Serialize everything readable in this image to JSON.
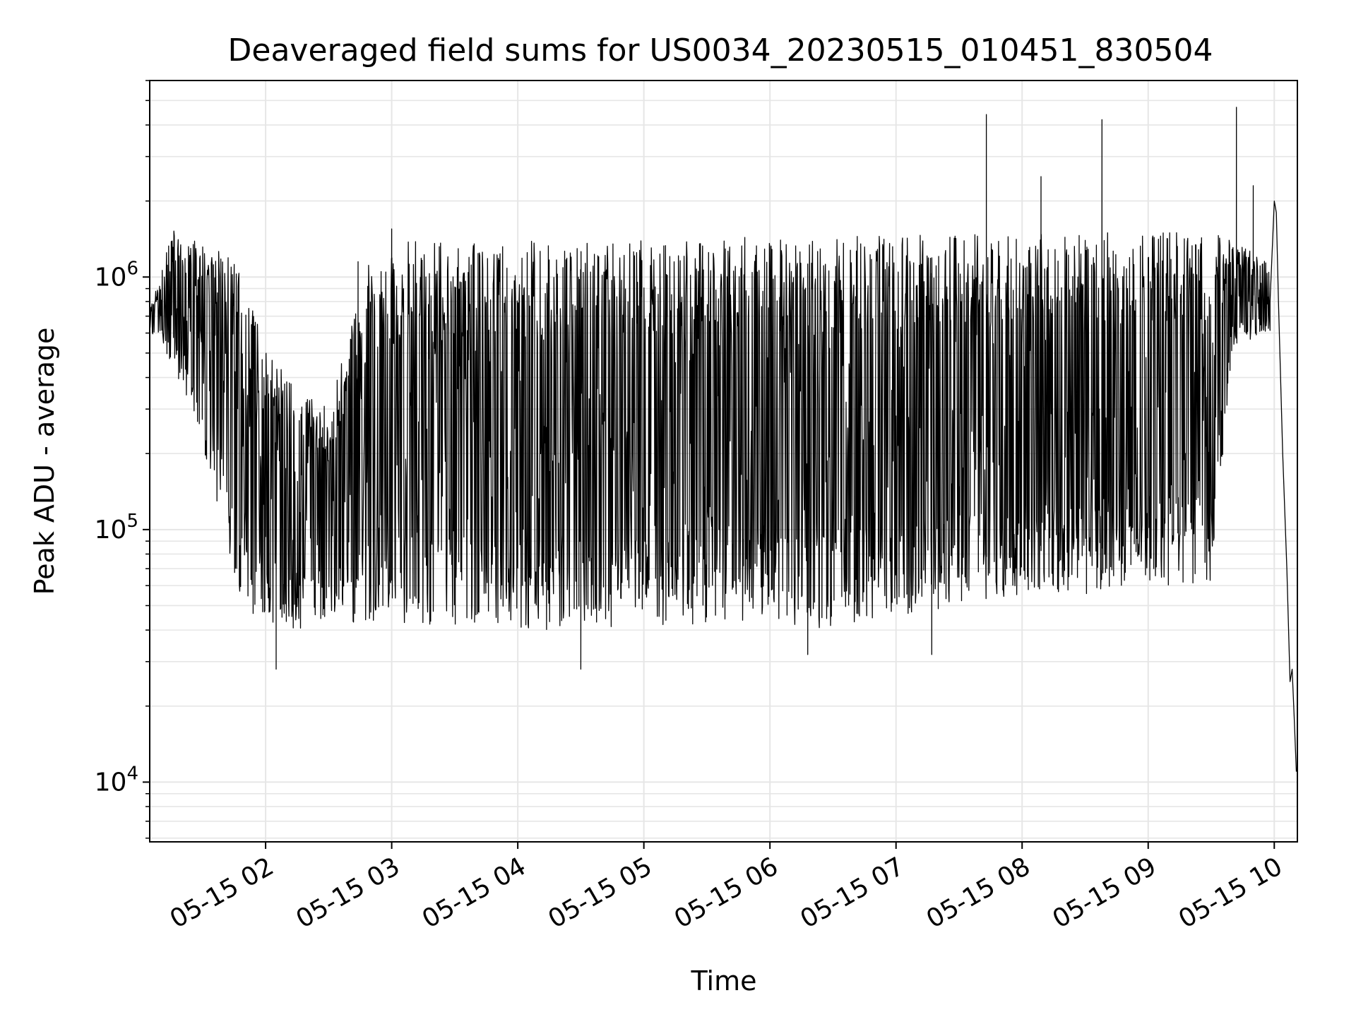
{
  "chart_data": {
    "type": "line",
    "title": "Deaveraged field sums for US0034_20230515_010451_830504",
    "xlabel": "Time",
    "ylabel": "Peak ADU - average",
    "yscale": "log",
    "ylim": [
      5800,
      6000000
    ],
    "xlim": [
      "2023-05-15 01:04:51",
      "2023-05-15 10:11:00"
    ],
    "x_ticks": [
      {
        "t": "2023-05-15 02:00:00",
        "label": "05-15 02"
      },
      {
        "t": "2023-05-15 03:00:00",
        "label": "05-15 03"
      },
      {
        "t": "2023-05-15 04:00:00",
        "label": "05-15 04"
      },
      {
        "t": "2023-05-15 05:00:00",
        "label": "05-15 05"
      },
      {
        "t": "2023-05-15 06:00:00",
        "label": "05-15 06"
      },
      {
        "t": "2023-05-15 07:00:00",
        "label": "05-15 07"
      },
      {
        "t": "2023-05-15 08:00:00",
        "label": "05-15 08"
      },
      {
        "t": "2023-05-15 09:00:00",
        "label": "05-15 09"
      },
      {
        "t": "2023-05-15 10:00:00",
        "label": "05-15 10"
      }
    ],
    "y_ticks": [
      {
        "value": 10000,
        "base": "10",
        "exp": "4"
      },
      {
        "value": 100000,
        "base": "10",
        "exp": "5"
      },
      {
        "value": 1000000,
        "base": "10",
        "exp": "6"
      }
    ],
    "grid": true,
    "line_color": "#000000",
    "grid_color": "#e6e6e6",
    "envelope": [
      {
        "t": "2023-05-15 01:04:51",
        "lo": 600000,
        "hi": 750000
      },
      {
        "t": "2023-05-15 01:10:00",
        "lo": 580000,
        "hi": 1000000
      },
      {
        "t": "2023-05-15 01:15:00",
        "lo": 450000,
        "hi": 1600000
      },
      {
        "t": "2023-05-15 01:25:00",
        "lo": 300000,
        "hi": 1400000
      },
      {
        "t": "2023-05-15 01:35:00",
        "lo": 150000,
        "hi": 1300000
      },
      {
        "t": "2023-05-15 01:45:00",
        "lo": 60000,
        "hi": 1200000
      },
      {
        "t": "2023-05-15 01:55:00",
        "lo": 45000,
        "hi": 700000
      },
      {
        "t": "2023-05-15 02:10:00",
        "lo": 40000,
        "hi": 400000
      },
      {
        "t": "2023-05-15 02:30:00",
        "lo": 42000,
        "hi": 300000
      },
      {
        "t": "2023-05-15 02:50:00",
        "lo": 42000,
        "hi": 1200000
      },
      {
        "t": "2023-05-15 03:10:00",
        "lo": 42000,
        "hi": 1400000
      },
      {
        "t": "2023-05-15 03:30:00",
        "lo": 42000,
        "hi": 1400000
      },
      {
        "t": "2023-05-15 03:50:00",
        "lo": 42000,
        "hi": 1350000
      },
      {
        "t": "2023-05-15 04:10:00",
        "lo": 40000,
        "hi": 1400000
      },
      {
        "t": "2023-05-15 04:30:00",
        "lo": 40000,
        "hi": 1400000
      },
      {
        "t": "2023-05-15 05:00:00",
        "lo": 40000,
        "hi": 1450000
      },
      {
        "t": "2023-05-15 05:30:00",
        "lo": 42000,
        "hi": 1450000
      },
      {
        "t": "2023-05-15 06:00:00",
        "lo": 45000,
        "hi": 1450000
      },
      {
        "t": "2023-05-15 06:20:00",
        "lo": 40000,
        "hi": 1400000
      },
      {
        "t": "2023-05-15 06:40:00",
        "lo": 42000,
        "hi": 1450000
      },
      {
        "t": "2023-05-15 07:00:00",
        "lo": 45000,
        "hi": 1450000
      },
      {
        "t": "2023-05-15 07:30:00",
        "lo": 50000,
        "hi": 1500000
      },
      {
        "t": "2023-05-15 08:00:00",
        "lo": 55000,
        "hi": 1500000
      },
      {
        "t": "2023-05-15 08:30:00",
        "lo": 55000,
        "hi": 1500000
      },
      {
        "t": "2023-05-15 09:00:00",
        "lo": 60000,
        "hi": 1500000
      },
      {
        "t": "2023-05-15 09:30:00",
        "lo": 60000,
        "hi": 1500000
      },
      {
        "t": "2023-05-15 09:40:00",
        "lo": 500000,
        "hi": 1400000
      },
      {
        "t": "2023-05-15 09:55:00",
        "lo": 600000,
        "hi": 1200000
      }
    ],
    "spikes": [
      {
        "t": "2023-05-15 07:43:00",
        "value": 4400000
      },
      {
        "t": "2023-05-15 08:09:00",
        "value": 2500000
      },
      {
        "t": "2023-05-15 08:38:00",
        "value": 4200000
      },
      {
        "t": "2023-05-15 09:42:00",
        "value": 4700000
      },
      {
        "t": "2023-05-15 09:50:00",
        "value": 2300000
      },
      {
        "t": "2023-05-15 02:44:00",
        "value": 1150000
      },
      {
        "t": "2023-05-15 03:00:00",
        "value": 1550000
      }
    ],
    "dips": [
      {
        "t": "2023-05-15 02:05:00",
        "value": 28000
      },
      {
        "t": "2023-05-15 04:30:00",
        "value": 28000
      },
      {
        "t": "2023-05-15 06:18:00",
        "value": 32000
      },
      {
        "t": "2023-05-15 07:17:00",
        "value": 32000
      }
    ],
    "tail": [
      {
        "t": "2023-05-15 09:58:00",
        "value": 800000
      },
      {
        "t": "2023-05-15 10:00:00",
        "value": 2000000
      },
      {
        "t": "2023-05-15 10:01:00",
        "value": 1800000
      },
      {
        "t": "2023-05-15 10:02:00",
        "value": 800000
      },
      {
        "t": "2023-05-15 10:04:00",
        "value": 200000
      },
      {
        "t": "2023-05-15 10:06:00",
        "value": 70000
      },
      {
        "t": "2023-05-15 10:07:30",
        "value": 25000
      },
      {
        "t": "2023-05-15 10:08:30",
        "value": 28000
      },
      {
        "t": "2023-05-15 10:09:30",
        "value": 18000
      },
      {
        "t": "2023-05-15 10:10:30",
        "value": 11000
      }
    ]
  }
}
